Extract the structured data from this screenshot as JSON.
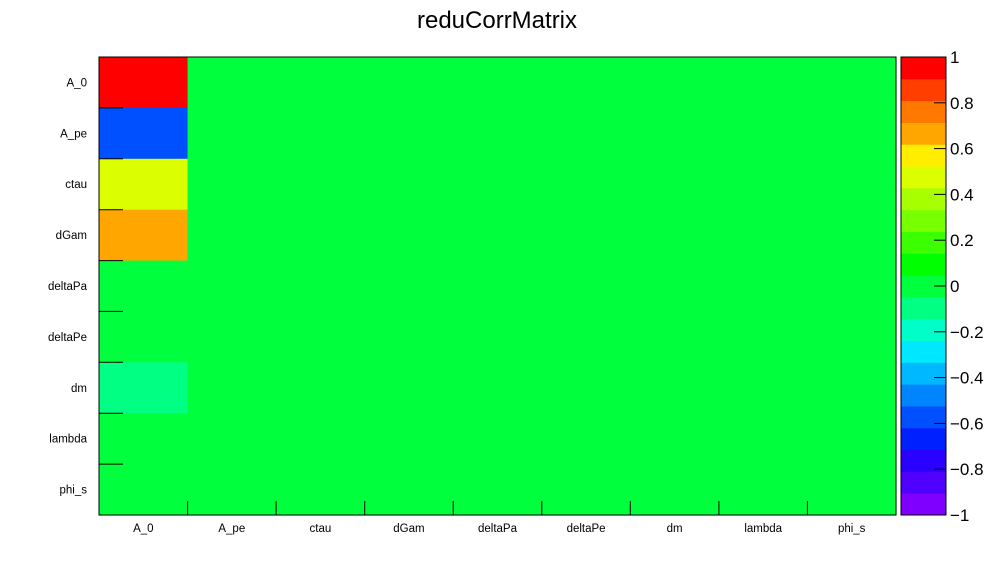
{
  "chart_data": {
    "type": "heatmap",
    "title": "reduCorrMatrix",
    "x_categories": [
      "A_0",
      "A_pe",
      "ctau",
      "dGam",
      "deltaPa",
      "deltaPe",
      "dm",
      "lambda",
      "phi_s"
    ],
    "y_categories": [
      "A_0",
      "A_pe",
      "ctau",
      "dGam",
      "deltaPa",
      "deltaPe",
      "dm",
      "lambda",
      "phi_s"
    ],
    "values": [
      [
        1.0,
        0,
        0,
        0,
        0,
        0,
        0,
        0,
        0
      ],
      [
        -0.55,
        0,
        0,
        0,
        0,
        0,
        0,
        0,
        0
      ],
      [
        0.5,
        0,
        0,
        0,
        0,
        0,
        0,
        0,
        0
      ],
      [
        0.65,
        0,
        0,
        0,
        0,
        0,
        0,
        0,
        0
      ],
      [
        0.0,
        0,
        0,
        0,
        0,
        0,
        0,
        0,
        0
      ],
      [
        0.0,
        0,
        0,
        0,
        0,
        0,
        0,
        0,
        0
      ],
      [
        -0.1,
        0,
        0,
        0,
        0,
        0,
        0,
        0,
        0
      ],
      [
        0.0,
        0,
        0,
        0,
        0,
        0,
        0,
        0,
        0
      ],
      [
        0.0,
        0,
        0,
        0,
        0,
        0,
        0,
        0,
        0
      ]
    ],
    "zlim": [
      -1,
      1
    ],
    "z_ticks": [
      1,
      0.8,
      0.6,
      0.4,
      0.2,
      0,
      -0.2,
      -0.4,
      -0.6,
      -0.8,
      -1
    ],
    "z_tick_labels": [
      "1",
      "0.8",
      "0.6",
      "0.4",
      "0.2",
      "0",
      "−0.2",
      "−0.4",
      "−0.6",
      "−0.8",
      "−1"
    ],
    "palette": [
      "#7f00ff",
      "#5000ff",
      "#2a00ff",
      "#0020ff",
      "#0050ff",
      "#0085ff",
      "#00b8ff",
      "#00e8ff",
      "#00ffc8",
      "#00ff82",
      "#00ff3c",
      "#00ff00",
      "#3cff00",
      "#78ff00",
      "#a8ff00",
      "#dcff00",
      "#ffee00",
      "#ffa600",
      "#ff7800",
      "#ff3e00",
      "#ff0000"
    ],
    "grid": false,
    "legend": "right color bar"
  }
}
